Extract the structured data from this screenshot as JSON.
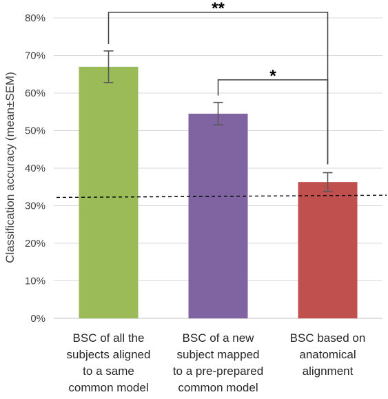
{
  "chart_data": {
    "type": "bar",
    "ylabel": "Classification accuracy (mean±SEM)",
    "ylim": [
      0,
      80
    ],
    "yticks": [
      0,
      10,
      20,
      30,
      40,
      50,
      60,
      70,
      80
    ],
    "ytick_labels": [
      "0%",
      "10%",
      "20%",
      "30%",
      "40%",
      "50%",
      "60%",
      "70%",
      "80%"
    ],
    "grid": true,
    "categories": [
      [
        "BSC of all the",
        "subjects aligned",
        "to a same",
        "common model"
      ],
      [
        "BSC of a new",
        "subject mapped",
        "to a pre-prepared",
        "common model"
      ],
      [
        "BSC based on",
        "anatomical",
        "alignment"
      ]
    ],
    "values": [
      67.0,
      54.5,
      36.3
    ],
    "errors": [
      4.2,
      3.0,
      2.5
    ],
    "colors": [
      "#9bbb59",
      "#8064a2",
      "#c0504d"
    ],
    "chance_line": {
      "y_start": 32.2,
      "y_end": 32.8,
      "style": "dashed"
    },
    "significance": [
      {
        "from": 0,
        "to": 2,
        "label": "**",
        "y": 81.5
      },
      {
        "from": 1,
        "to": 2,
        "label": "*",
        "y": 63.5
      }
    ]
  }
}
